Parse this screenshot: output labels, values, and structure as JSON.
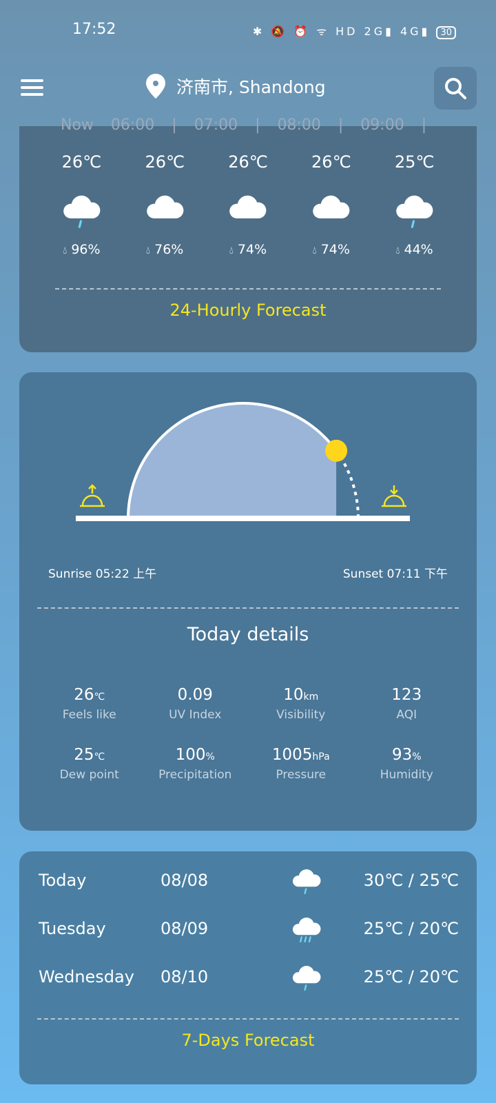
{
  "status_bar": {
    "time": "17:52",
    "icons": [
      "bluetooth-icon",
      "mute-icon",
      "alarm-icon",
      "wifi-icon",
      "hd-icon",
      "signal-2g-icon",
      "signal-4g-icon"
    ],
    "battery": "30"
  },
  "header": {
    "location": "济南市, Shandong"
  },
  "hourly": {
    "times": "Now 06:00 | 07:00 | 08:00 | 09:00 |",
    "items": [
      {
        "temp": "26℃",
        "icon": "rain-cloud",
        "humidity": "96%"
      },
      {
        "temp": "26℃",
        "icon": "cloud",
        "humidity": "76%"
      },
      {
        "temp": "26℃",
        "icon": "cloud",
        "humidity": "74%"
      },
      {
        "temp": "26℃",
        "icon": "cloud",
        "humidity": "74%"
      },
      {
        "temp": "25℃",
        "icon": "rain-cloud",
        "humidity": "44%"
      }
    ],
    "link": "24-Hourly Forecast"
  },
  "sun": {
    "sunrise": "Sunrise 05:22 上午",
    "sunset": "Sunset 07:11 下午",
    "progress": 0.8
  },
  "today": {
    "title": "Today details",
    "items": [
      {
        "value": "26",
        "unit": "℃",
        "label": "Feels like"
      },
      {
        "value": "0.09",
        "unit": "",
        "label": "UV Index"
      },
      {
        "value": "10",
        "unit": "km",
        "label": "Visibility"
      },
      {
        "value": "123",
        "unit": "",
        "label": "AQI"
      },
      {
        "value": "25",
        "unit": "℃",
        "label": "Dew point"
      },
      {
        "value": "100",
        "unit": "%",
        "label": "Precipitation"
      },
      {
        "value": "1005",
        "unit": "hPa",
        "label": "Pressure"
      },
      {
        "value": "93",
        "unit": "%",
        "label": "Humidity"
      }
    ]
  },
  "daily": {
    "items": [
      {
        "day": "Today",
        "date": "08/08",
        "icon": "rain-cloud",
        "range": "30℃ / 25℃"
      },
      {
        "day": "Tuesday",
        "date": "08/09",
        "icon": "heavy-rain-cloud",
        "range": "25℃ / 20℃"
      },
      {
        "day": "Wednesday",
        "date": "08/10",
        "icon": "rain-cloud",
        "range": "25℃ / 20℃"
      }
    ],
    "link": "7-Days Forecast"
  },
  "colors": {
    "accent": "#f5e61e",
    "sun": "#ffd61c",
    "arc_fill": "#9bb5d8"
  }
}
